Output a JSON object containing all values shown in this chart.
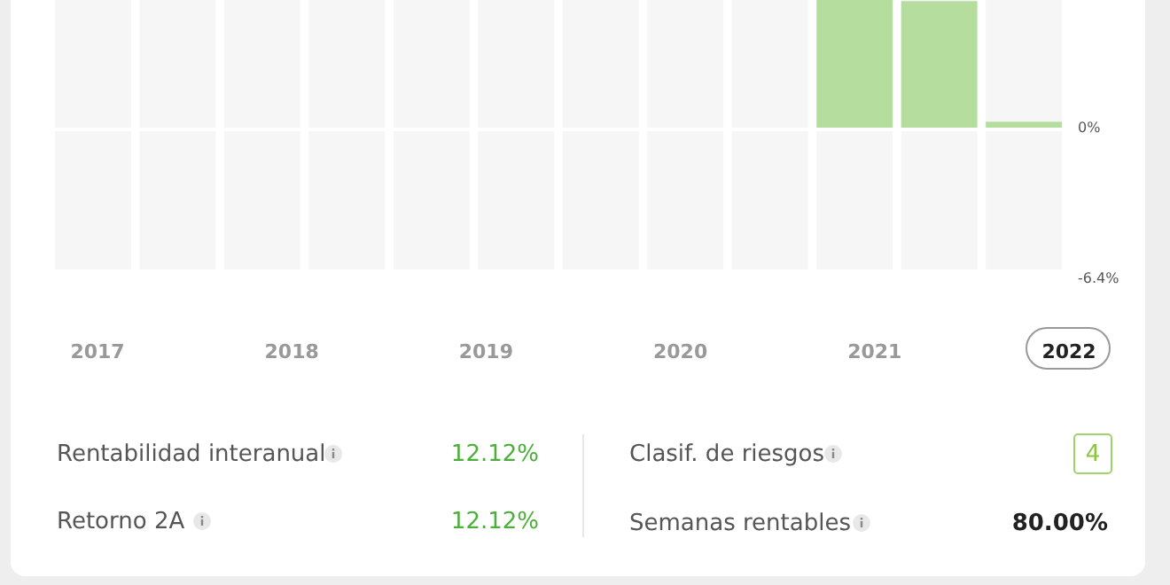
{
  "chart_data": {
    "type": "bar",
    "categories": [
      null,
      null,
      null,
      null,
      null,
      null,
      null,
      null,
      null,
      null,
      null,
      null
    ],
    "values": [
      null,
      null,
      null,
      null,
      null,
      null,
      null,
      null,
      null,
      5.42,
      5.37,
      0.25
    ],
    "color": "#b5dd9e",
    "ylim": [
      -6.4,
      5.42
    ],
    "yticks": [
      {
        "value": 0,
        "label": "0%"
      },
      {
        "value": -6.4,
        "label": "-6.4%"
      }
    ],
    "grid": false,
    "annotations": [
      "2017",
      "2018",
      "2019",
      "2020",
      "2021",
      "2022",
      "Rentabilidad interanual",
      "12.12%",
      "Retorno 2A",
      "12.12%",
      "Clasif. de riesgos",
      "4",
      "Semanas rentables",
      "80.00%"
    ]
  }
}
